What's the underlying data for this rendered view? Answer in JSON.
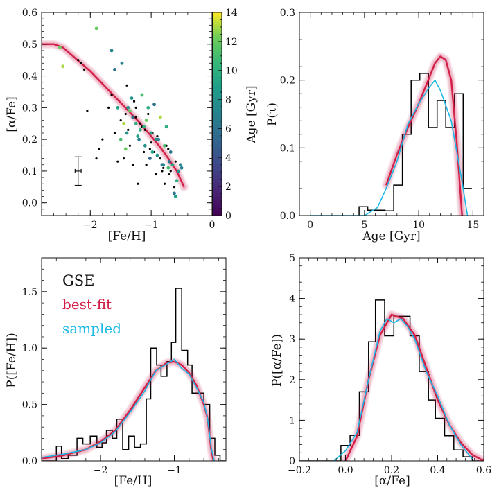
{
  "chart_data": [
    {
      "id": "alpha_vs_feh",
      "type": "scatter",
      "xlabel": "[Fe/H]",
      "ylabel": "[α/Fe]",
      "xlim": [
        -2.8,
        0
      ],
      "ylim": [
        -0.04,
        0.6
      ],
      "xticks": [
        -2,
        -1,
        0
      ],
      "yticks": [
        0.0,
        0.1,
        0.2,
        0.3,
        0.4,
        0.5,
        0.6
      ],
      "colorbar": {
        "label": "Age [Gyr]",
        "range": [
          0,
          14
        ],
        "ticks": [
          0,
          2,
          4,
          6,
          8,
          10,
          12,
          14
        ]
      },
      "errorbar": {
        "x": -2.2,
        "y": 0.1,
        "xerr": 0.05,
        "yerr": 0.045
      },
      "series": [
        {
          "type": "line",
          "color": "#d21f47",
          "x": [
            -2.8,
            -2.6,
            -2.45,
            -2.3,
            -2.15,
            -2.0,
            -1.8,
            -1.6,
            -1.4,
            -1.2,
            -1.0,
            -0.85,
            -0.7,
            -0.58,
            -0.46
          ],
          "y": [
            0.5,
            0.5,
            0.49,
            0.465,
            0.44,
            0.415,
            0.375,
            0.335,
            0.295,
            0.255,
            0.21,
            0.175,
            0.135,
            0.1,
            0.05
          ]
        },
        {
          "type": "scatter",
          "note": "no-age",
          "x": [
            -2.2,
            -2.15,
            -2.1,
            -1.85,
            -1.8,
            -1.7,
            -1.6,
            -1.55,
            -1.45,
            -1.4,
            -1.35,
            -1.3,
            -1.25,
            -1.2,
            -1.15,
            -1.1,
            -1.05,
            -1.0,
            -0.95,
            -0.9,
            -0.85,
            -0.8,
            -0.75,
            -0.7,
            -0.65,
            -0.6,
            -0.55,
            -1.5,
            -1.25,
            -1.12,
            -0.98,
            -0.88,
            -0.78,
            -0.68,
            -1.38,
            -1.22,
            -1.08,
            -0.92,
            -0.72,
            -2.05,
            -1.9,
            -1.65,
            -1.42,
            -1.28,
            -1.18,
            -1.02,
            -0.82,
            -0.62
          ],
          "y": [
            0.45,
            0.44,
            0.42,
            0.17,
            0.2,
            0.3,
            0.22,
            0.13,
            0.14,
            0.37,
            0.18,
            0.12,
            0.27,
            0.2,
            0.24,
            0.23,
            0.28,
            0.19,
            0.16,
            0.21,
            0.14,
            0.11,
            0.18,
            0.09,
            0.12,
            0.13,
            0.1,
            0.26,
            0.3,
            0.16,
            0.22,
            0.2,
            0.06,
            0.1,
            0.23,
            0.06,
            0.12,
            0.09,
            0.17,
            0.29,
            0.14,
            0.34,
            0.28,
            0.32,
            0.25,
            0.17,
            0.1,
            0.05
          ]
        },
        {
          "type": "scatter",
          "note": "age-colored",
          "x": [
            -2.5,
            -2.45,
            -1.9,
            -1.65,
            -1.55,
            -1.5,
            -1.45,
            -1.4,
            -1.35,
            -1.3,
            -1.25,
            -1.2,
            -1.15,
            -1.1,
            -1.05,
            -1.0,
            -0.95,
            -0.9,
            -0.85,
            -0.8,
            -0.75,
            -0.7,
            -0.65,
            -0.6,
            -0.55,
            -0.5,
            -1.48,
            -1.32,
            -1.18,
            -1.08,
            -0.98,
            -0.88,
            -0.78,
            -0.68,
            -0.58,
            -1.6,
            -1.42,
            -1.22,
            -1.12,
            -1.02,
            -0.92,
            -0.82,
            -0.72,
            -0.52,
            -0.62,
            -1.38
          ],
          "y": [
            0.49,
            0.43,
            0.55,
            0.48,
            0.3,
            0.2,
            0.25,
            0.22,
            0.29,
            0.27,
            0.25,
            0.2,
            0.34,
            0.18,
            0.3,
            0.22,
            0.31,
            0.15,
            0.27,
            0.12,
            0.24,
            0.13,
            0.12,
            0.02,
            0.1,
            0.11,
            0.44,
            0.33,
            0.23,
            0.26,
            0.16,
            0.2,
            0.18,
            0.16,
            0.07,
            0.42,
            0.17,
            0.21,
            0.24,
            0.14,
            0.2,
            0.12,
            0.11,
            0.12,
            0.03,
            0.3
          ],
          "age": [
            12,
            13,
            12,
            7,
            9,
            11,
            13,
            8,
            12,
            6,
            10,
            7,
            11,
            8,
            10,
            9,
            6,
            8,
            13,
            7,
            10,
            6,
            9,
            9,
            8,
            7,
            7,
            8,
            10,
            12,
            9,
            7,
            11,
            6,
            10,
            6,
            12,
            9,
            10,
            5,
            8,
            7,
            11,
            7,
            6,
            8
          ]
        }
      ]
    },
    {
      "id": "age_distribution",
      "type": "line",
      "xlabel": "Age [Gyr]",
      "ylabel": "P(τ)",
      "xlim": [
        -1,
        16
      ],
      "ylim": [
        0,
        0.3
      ],
      "xticks": [
        0,
        5,
        10,
        15
      ],
      "yticks": [
        0.0,
        0.1,
        0.2,
        0.3
      ],
      "series": [
        {
          "type": "step",
          "color": "#000000",
          "edges": [
            4.5,
            5.3,
            6.1,
            6.9,
            7.7,
            8.5,
            9.3,
            10.1,
            10.9,
            11.7,
            12.5,
            13.3,
            14.1
          ],
          "values": [
            0.013,
            0.008,
            0.008,
            0.007,
            0.045,
            0.12,
            0.2,
            0.21,
            0.13,
            0.17,
            0.13,
            0.18,
            0.04
          ]
        },
        {
          "type": "line",
          "color": "#d21f47",
          "x": [
            7,
            8,
            9,
            10,
            11,
            11.5,
            12,
            12.5,
            13,
            13.5,
            14
          ],
          "y": [
            0.045,
            0.09,
            0.13,
            0.165,
            0.205,
            0.225,
            0.235,
            0.23,
            0.2,
            0.11,
            0.0
          ]
        },
        {
          "type": "line",
          "color": "#1ab8e4",
          "x": [
            0,
            5,
            6.2,
            7,
            8,
            9,
            10,
            11,
            11.5,
            12,
            13,
            14,
            14.5
          ],
          "y": [
            0,
            0.0,
            0.012,
            0.04,
            0.08,
            0.135,
            0.165,
            0.19,
            0.2,
            0.185,
            0.14,
            0.05,
            0.0
          ]
        }
      ]
    },
    {
      "id": "feh_distribution",
      "type": "line",
      "xlabel": "[Fe/H]",
      "ylabel": "P([Fe/H])",
      "xlim": [
        -2.8,
        -0.3
      ],
      "ylim": [
        0,
        1.8
      ],
      "xticks": [
        -2,
        -1
      ],
      "yticks": [
        0.0,
        0.5,
        1.0,
        1.5
      ],
      "legend": {
        "title": "GSE",
        "best_fit": "best-fit",
        "sampled": "sampled",
        "position": "top-left"
      },
      "series": [
        {
          "type": "step",
          "color": "#000000",
          "edges": [
            -2.8,
            -2.6,
            -2.53,
            -2.44,
            -2.32,
            -2.24,
            -2.14,
            -2.05,
            -1.98,
            -1.92,
            -1.84,
            -1.78,
            -1.7,
            -1.62,
            -1.54,
            -1.46,
            -1.38,
            -1.32,
            -1.24,
            -1.18,
            -1.1,
            -1.04,
            -0.98,
            -0.9,
            -0.82,
            -0.76,
            -0.68,
            -0.6,
            -0.52,
            -0.45,
            -0.38
          ],
          "values": [
            0.0,
            0.13,
            0.02,
            0.05,
            0.2,
            0.15,
            0.22,
            0.12,
            0.16,
            0.27,
            0.2,
            0.37,
            0.1,
            0.22,
            0.12,
            0.15,
            0.55,
            1.0,
            0.85,
            0.75,
            0.88,
            1.05,
            1.53,
            0.98,
            0.85,
            0.6,
            0.6,
            0.5,
            0.2,
            0.05,
            0.0
          ]
        },
        {
          "type": "line",
          "color": "#d21f47",
          "x": [
            -2.8,
            -2.5,
            -2.2,
            -2.0,
            -1.8,
            -1.6,
            -1.4,
            -1.25,
            -1.1,
            -1.0,
            -0.9,
            -0.8,
            -0.7,
            -0.6,
            -0.55,
            -0.5,
            -0.47
          ],
          "y": [
            0.02,
            0.05,
            0.1,
            0.17,
            0.27,
            0.45,
            0.65,
            0.8,
            0.87,
            0.88,
            0.85,
            0.78,
            0.67,
            0.5,
            0.38,
            0.1,
            0.0
          ]
        },
        {
          "type": "line",
          "color": "#1ab8e4",
          "x": [
            -2.8,
            -2.5,
            -2.2,
            -2.0,
            -1.8,
            -1.6,
            -1.4,
            -1.25,
            -1.1,
            -1.0,
            -0.9,
            -0.8,
            -0.7,
            -0.6,
            -0.55,
            -0.5,
            -0.46
          ],
          "y": [
            0.03,
            0.06,
            0.1,
            0.16,
            0.26,
            0.43,
            0.62,
            0.8,
            0.86,
            0.9,
            0.82,
            0.77,
            0.65,
            0.52,
            0.38,
            0.12,
            0.0
          ]
        }
      ]
    },
    {
      "id": "alpha_distribution",
      "type": "line",
      "xlabel": "[α/Fe]",
      "ylabel": "P([α/Fe])",
      "xlim": [
        -0.2,
        0.6
      ],
      "ylim": [
        0,
        5
      ],
      "xticks": [
        -0.2,
        0.0,
        0.2,
        0.4,
        0.6
      ],
      "xticklabels": [
        "−0.2",
        "0.0",
        "0.2",
        "0.4",
        "0.6"
      ],
      "yticks": [
        0,
        1,
        2,
        3,
        4,
        5
      ],
      "series": [
        {
          "type": "step",
          "color": "#000000",
          "edges": [
            -0.2,
            -0.02,
            0.02,
            0.06,
            0.1,
            0.13,
            0.17,
            0.21,
            0.24,
            0.28,
            0.32,
            0.36,
            0.39,
            0.43,
            0.47,
            0.51,
            0.55
          ],
          "values": [
            0.0,
            0.38,
            0.63,
            1.7,
            2.93,
            3.96,
            3.08,
            3.56,
            3.56,
            3.08,
            2.2,
            1.5,
            1.05,
            0.62,
            0.27,
            0.1,
            0.0
          ]
        },
        {
          "type": "line",
          "color": "#d21f47",
          "x": [
            0.0,
            0.05,
            0.1,
            0.15,
            0.2,
            0.25,
            0.3,
            0.35,
            0.4,
            0.45,
            0.5,
            0.55,
            0.6
          ],
          "y": [
            0.0,
            0.6,
            2.0,
            3.1,
            3.6,
            3.5,
            3.1,
            2.3,
            1.5,
            0.9,
            0.45,
            0.15,
            0.0
          ]
        },
        {
          "type": "line",
          "color": "#1ab8e4",
          "x": [
            -0.05,
            0.0,
            0.05,
            0.1,
            0.15,
            0.18,
            0.21,
            0.24,
            0.27,
            0.3,
            0.35,
            0.4,
            0.45,
            0.5,
            0.55
          ],
          "y": [
            0.0,
            0.25,
            0.7,
            2.0,
            3.2,
            3.5,
            3.4,
            3.5,
            3.3,
            3.0,
            2.2,
            1.6,
            0.9,
            0.4,
            0.05
          ]
        }
      ]
    }
  ]
}
